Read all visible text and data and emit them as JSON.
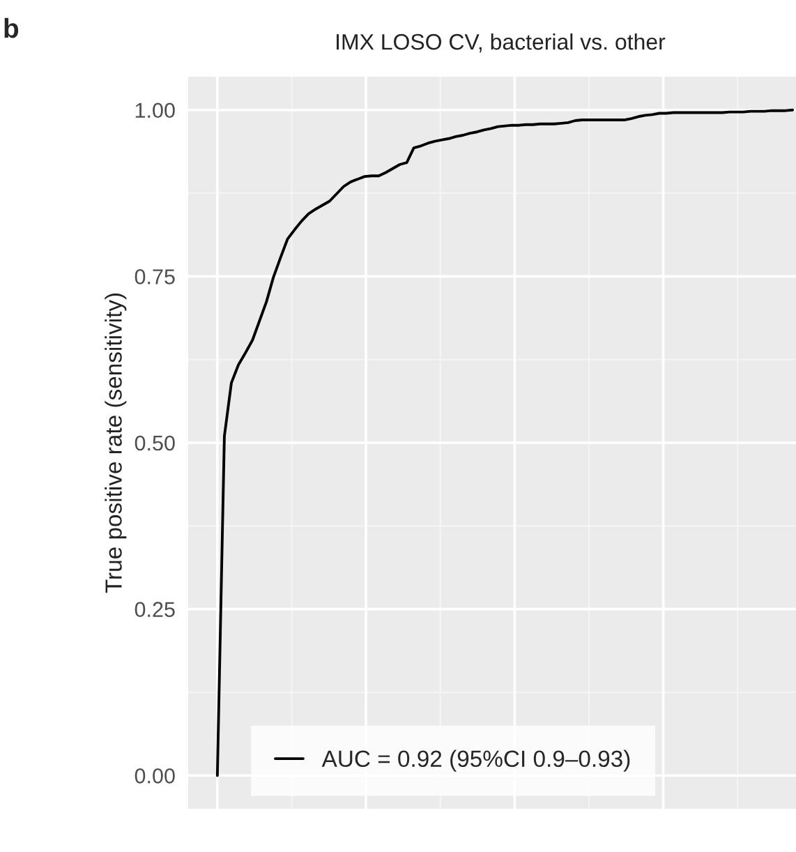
{
  "chart_data": {
    "type": "line",
    "title": "IMX LOSO CV, bacterial vs. other",
    "ylabel": "True positive rate (sensitivity)",
    "annotations": [
      "b"
    ],
    "categories": [
      null,
      null,
      null,
      null,
      null,
      null,
      null,
      null,
      null,
      null,
      null,
      null,
      null,
      null,
      null,
      null,
      null,
      null,
      null,
      null,
      null,
      null,
      null,
      null,
      null,
      null,
      null,
      null,
      null,
      null,
      null,
      null,
      null,
      null,
      null,
      null,
      null,
      null,
      null,
      null,
      null,
      null,
      null,
      null,
      null,
      null,
      null,
      null,
      null,
      null,
      null,
      null,
      null,
      null,
      null,
      null,
      null,
      null,
      null,
      null,
      null,
      null,
      null,
      null,
      null,
      null,
      null,
      null,
      null,
      null,
      null,
      null,
      null,
      null,
      null,
      null,
      null,
      null,
      null,
      null,
      null,
      null,
      null
    ],
    "series": [
      {
        "name": "AUC = 0.92 (95%CI 0.9–0.93)",
        "color": "#000000",
        "values": [
          0,
          0.51,
          0.59,
          0.617,
          0.635,
          0.654,
          0.683,
          0.712,
          0.749,
          0.778,
          0.806,
          0.82,
          0.833,
          0.844,
          0.851,
          0.857,
          0.863,
          0.874,
          0.885,
          0.892,
          0.896,
          0.9,
          0.901,
          0.901,
          0.906,
          0.912,
          0.918,
          0.921,
          0.943,
          0.946,
          0.95,
          0.953,
          0.955,
          0.957,
          0.96,
          0.962,
          0.965,
          0.967,
          0.97,
          0.972,
          0.975,
          0.976,
          0.977,
          0.977,
          0.978,
          0.978,
          0.979,
          0.979,
          0.979,
          0.98,
          0.981,
          0.984,
          0.985,
          0.985,
          0.985,
          0.985,
          0.985,
          0.985,
          0.985,
          0.987,
          0.99,
          0.992,
          0.993,
          0.995,
          0.995,
          0.996,
          0.996,
          0.996,
          0.996,
          0.996,
          0.996,
          0.996,
          0.996,
          0.997,
          0.997,
          0.997,
          0.998,
          0.998,
          0.998,
          0.999,
          0.999,
          0.999,
          1.0
        ]
      }
    ],
    "ylim": [
      -0.05,
      1.05
    ],
    "yticks": [
      {
        "value": 0,
        "label": "0.00"
      },
      {
        "value": 0.25,
        "label": "0.25"
      },
      {
        "value": 0.5,
        "label": "0.50"
      },
      {
        "value": 0.75,
        "label": "0.75"
      },
      {
        "value": 1,
        "label": "1.00"
      }
    ],
    "tick_labels": "y",
    "grid": true,
    "legend": "bottom left",
    "marker": "none",
    "line_style": "solid"
  }
}
